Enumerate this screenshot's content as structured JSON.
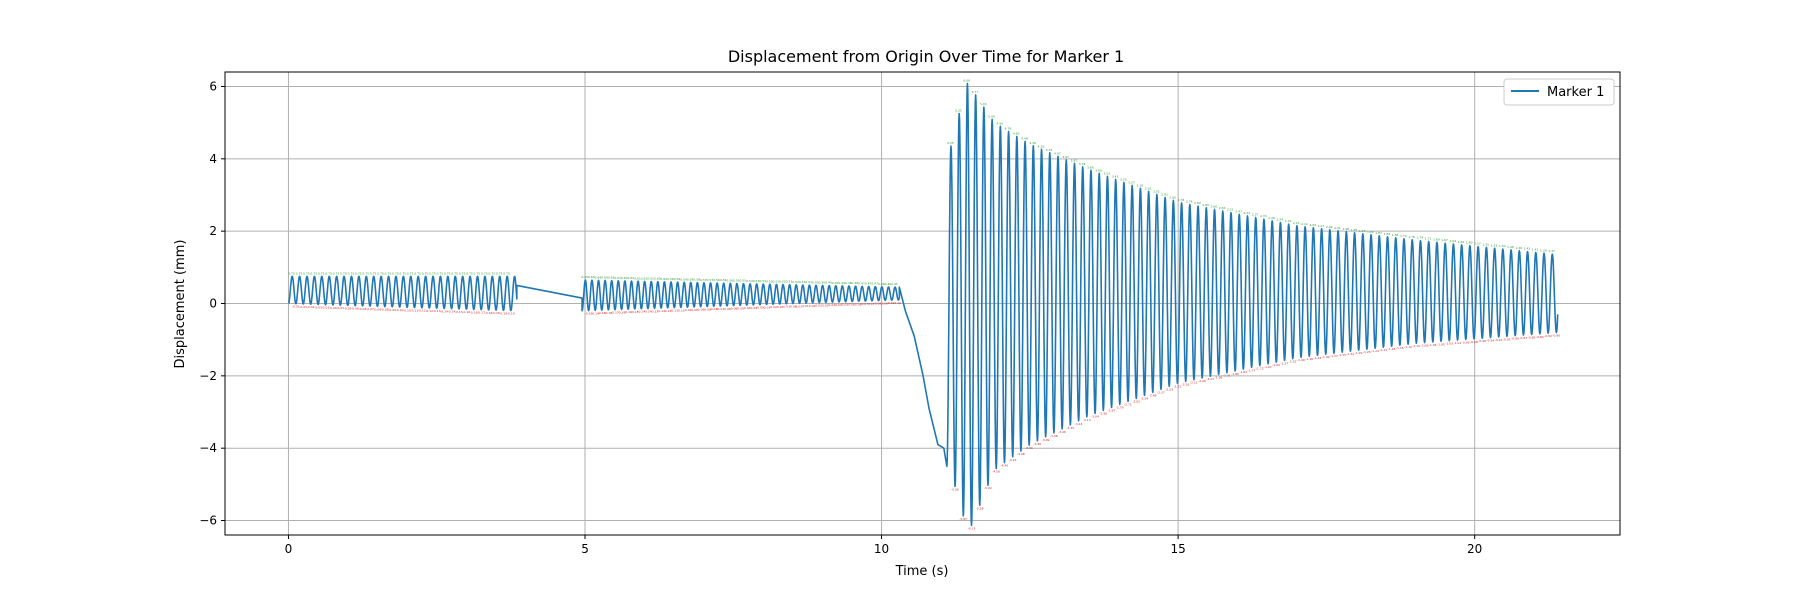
{
  "chart_data": {
    "type": "line",
    "title": "Displacement from Origin Over Time for Marker 1",
    "xlabel": "Time (s)",
    "ylabel": "Displacement (mm)",
    "xlim": [
      -1.07,
      22.45
    ],
    "ylim": [
      -6.4,
      6.4
    ],
    "xticks": [
      0,
      5,
      10,
      15,
      20
    ],
    "yticks": [
      -6,
      -4,
      -2,
      0,
      2,
      4,
      6
    ],
    "grid": true,
    "legend_position": "top-right",
    "series": [
      {
        "name": "Marker 1",
        "color": "#1f77b4",
        "segments": [
          {
            "description": "small oscillation",
            "t_start": 0.0,
            "t_end": 3.85,
            "frequency_hz": 8.0,
            "upper_start": 0.75,
            "upper_end": 0.75,
            "lower_start": 0.0,
            "lower_end": -0.2
          },
          {
            "description": "gap connector",
            "points": [
              [
                3.85,
                0.5
              ],
              [
                4.95,
                0.15
              ]
            ]
          },
          {
            "description": "small oscillation",
            "t_start": 4.95,
            "t_end": 10.3,
            "frequency_hz": 9.0,
            "upper_start": 0.65,
            "upper_end": 0.45,
            "lower_start": -0.2,
            "lower_end": 0.1
          },
          {
            "description": "descent",
            "points": [
              [
                10.3,
                0.45
              ],
              [
                10.4,
                -0.2
              ],
              [
                10.55,
                -0.9
              ],
              [
                10.7,
                -2.0
              ],
              [
                10.8,
                -2.9
              ],
              [
                10.95,
                -3.9
              ],
              [
                11.05,
                -4.0
              ]
            ]
          },
          {
            "description": "large decaying oscillation",
            "t_start": 11.1,
            "t_end": 21.4,
            "frequency_hz": 7.2,
            "peaks": [
              [
                11.1,
                3.9
              ],
              [
                11.3,
                5.2
              ],
              [
                11.45,
                6.1
              ],
              [
                11.9,
                5.0
              ],
              [
                12.5,
                4.4
              ],
              [
                13.5,
                3.7
              ],
              [
                15.0,
                2.8
              ],
              [
                17.0,
                2.15
              ],
              [
                19.0,
                1.75
              ],
              [
                21.4,
                1.35
              ]
            ],
            "troughs": [
              [
                11.1,
                -4.5
              ],
              [
                11.3,
                -5.3
              ],
              [
                11.45,
                -6.4
              ],
              [
                11.9,
                -4.6
              ],
              [
                12.5,
                -3.9
              ],
              [
                13.5,
                -3.1
              ],
              [
                15.0,
                -2.2
              ],
              [
                17.0,
                -1.5
              ],
              [
                19.0,
                -1.1
              ],
              [
                21.4,
                -0.8
              ]
            ]
          }
        ]
      }
    ]
  }
}
